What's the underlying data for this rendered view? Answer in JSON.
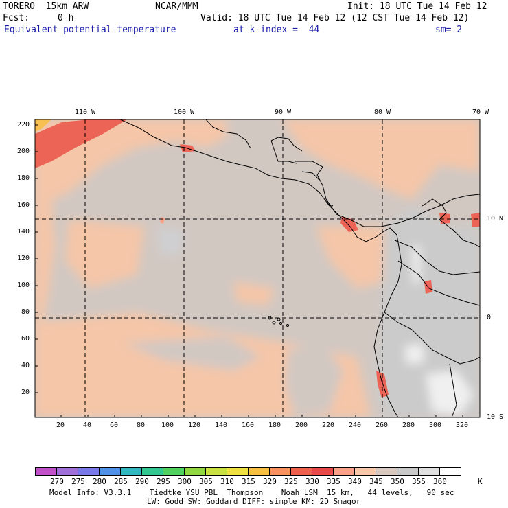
{
  "header": {
    "model": "TORERO  15km ARW",
    "org": "NCAR/MMM",
    "init": "Init: 18 UTC Tue 14 Feb 12",
    "fcst_label": "Fcst:",
    "fcst_value": "0 h",
    "valid": "Valid: 18 UTC Tue 14 Feb 12 (12 CST Tue 14 Feb 12)",
    "field": "Equivalent potential temperature",
    "level": "at k-index =  44",
    "smooth": "sm= 2"
  },
  "map": {
    "top_lon_labels": [
      "110 W",
      "100 W",
      "90 W",
      "80 W",
      "70 W"
    ],
    "right_lat_labels": [
      "10 N",
      "0",
      "10 S"
    ],
    "y_grid_labels": [
      "220",
      "200",
      "180",
      "160",
      "140",
      "120",
      "100",
      "80",
      "60",
      "40",
      "20"
    ],
    "x_grid_labels": [
      "20",
      "40",
      "60",
      "80",
      "100",
      "120",
      "140",
      "160",
      "180",
      "200",
      "220",
      "240",
      "260",
      "280",
      "300",
      "320"
    ]
  },
  "colorbar": {
    "levels": [
      "270",
      "275",
      "280",
      "285",
      "290",
      "295",
      "300",
      "305",
      "310",
      "315",
      "320",
      "325",
      "330",
      "335",
      "340",
      "345",
      "350",
      "355",
      "360"
    ],
    "unit": "K",
    "colors": [
      "#c050c8",
      "#a070d8",
      "#7878e8",
      "#5090e8",
      "#30b8c0",
      "#30c890",
      "#50d060",
      "#90d840",
      "#c8e040",
      "#f0e040",
      "#f8c040",
      "#f89060",
      "#f06050",
      "#e84848",
      "#f8a088",
      "#f8c8a8",
      "#d8c8c0",
      "#c8c8c8",
      "#e0e0e0",
      "#ffffff"
    ]
  },
  "footer": {
    "line1": "Model Info: V3.3.1    Tiedtke YSU PBL  Thompson    Noah LSM  15 km,   44 levels,   90 sec",
    "line2": "LW: Godd SW: Goddard DIFF: simple KM: 2D Smagor"
  }
}
